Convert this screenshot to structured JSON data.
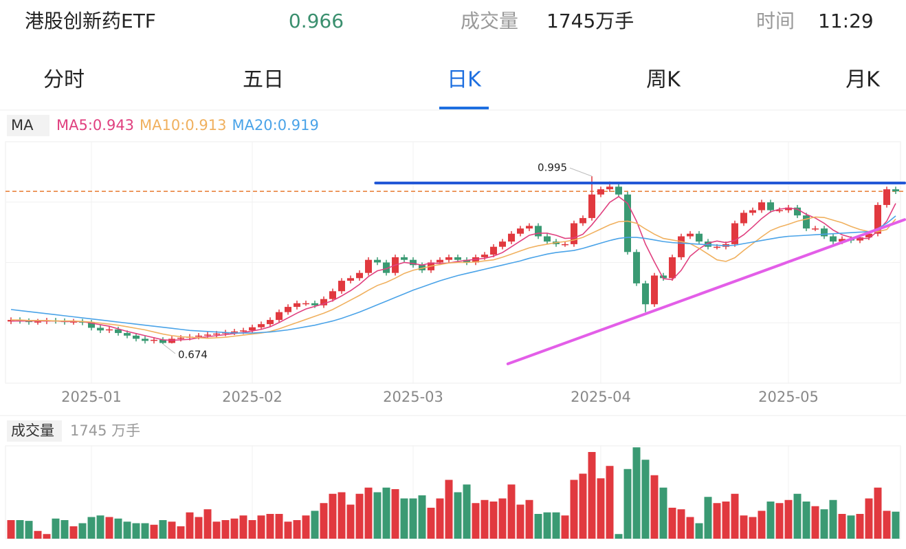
{
  "header": {
    "title": "港股创新药ETF",
    "price": 0.966,
    "volume_label": "成交量",
    "volume": "1745万手",
    "time_label": "时间",
    "time": "11:29"
  },
  "tabs": {
    "items": [
      "分时",
      "五日",
      "日K",
      "周K",
      "月K"
    ],
    "active": 2
  },
  "chart_data": {
    "type": "candlestick",
    "indicator": "MA",
    "categories": [
      null,
      null,
      null,
      null,
      null,
      null,
      null,
      null,
      null,
      "2025-01",
      null,
      null,
      null,
      null,
      null,
      null,
      null,
      null,
      null,
      null,
      null,
      null,
      null,
      null,
      null,
      null,
      null,
      "2025-02",
      null,
      null,
      null,
      null,
      null,
      null,
      null,
      null,
      null,
      null,
      null,
      null,
      null,
      null,
      null,
      null,
      null,
      "2025-03",
      null,
      null,
      null,
      null,
      null,
      null,
      null,
      null,
      null,
      null,
      null,
      null,
      null,
      null,
      null,
      null,
      null,
      null,
      null,
      null,
      "2025-04",
      null,
      null,
      null,
      null,
      null,
      null,
      null,
      null,
      null,
      null,
      null,
      null,
      null,
      null,
      null,
      null,
      null,
      null,
      null,
      null,
      "2025-05",
      null,
      null,
      null,
      null,
      null,
      null,
      null,
      null,
      null,
      null,
      null,
      null
    ],
    "open": [
      0.717,
      0.72,
      0.718,
      0.716,
      0.717,
      0.719,
      0.718,
      0.716,
      0.717,
      0.715,
      0.705,
      0.7,
      0.702,
      0.695,
      0.69,
      0.684,
      0.68,
      0.682,
      0.676,
      0.684,
      0.686,
      0.688,
      0.69,
      0.692,
      0.694,
      0.696,
      0.698,
      0.7,
      0.706,
      0.712,
      0.72,
      0.735,
      0.745,
      0.752,
      0.752,
      0.748,
      0.76,
      0.775,
      0.795,
      0.8,
      0.81,
      0.835,
      0.83,
      0.81,
      0.84,
      0.835,
      0.825,
      0.815,
      0.83,
      0.835,
      0.84,
      0.835,
      0.83,
      0.84,
      0.845,
      0.86,
      0.87,
      0.885,
      0.895,
      0.9,
      0.88,
      0.87,
      0.865,
      0.865,
      0.905,
      0.915,
      0.96,
      0.97,
      0.975,
      0.96,
      0.85,
      0.79,
      0.75,
      0.805,
      0.8,
      0.84,
      0.88,
      0.885,
      0.87,
      0.86,
      0.86,
      0.865,
      0.905,
      0.925,
      0.93,
      0.945,
      0.93,
      0.93,
      0.935,
      0.92,
      0.895,
      0.895,
      0.88,
      0.87,
      0.875,
      0.872,
      0.878,
      0.885,
      0.94,
      0.97
    ],
    "high": [
      0.725,
      0.725,
      0.723,
      0.722,
      0.724,
      0.724,
      0.723,
      0.722,
      0.722,
      0.72,
      0.71,
      0.707,
      0.707,
      0.7,
      0.695,
      0.689,
      0.687,
      0.687,
      0.689,
      0.691,
      0.693,
      0.695,
      0.697,
      0.699,
      0.701,
      0.703,
      0.705,
      0.711,
      0.717,
      0.725,
      0.74,
      0.75,
      0.757,
      0.757,
      0.757,
      0.765,
      0.78,
      0.8,
      0.805,
      0.815,
      0.84,
      0.84,
      0.835,
      0.845,
      0.845,
      0.84,
      0.83,
      0.835,
      0.84,
      0.845,
      0.845,
      0.84,
      0.845,
      0.85,
      0.865,
      0.875,
      0.89,
      0.9,
      0.905,
      0.905,
      0.885,
      0.875,
      0.87,
      0.91,
      0.92,
      0.995,
      0.975,
      0.985,
      0.98,
      0.965,
      0.855,
      0.795,
      0.81,
      0.81,
      0.845,
      0.885,
      0.89,
      0.89,
      0.875,
      0.865,
      0.87,
      0.91,
      0.93,
      0.935,
      0.95,
      0.95,
      0.935,
      0.94,
      0.94,
      0.925,
      0.9,
      0.9,
      0.885,
      0.88,
      0.88,
      0.883,
      0.89,
      0.945,
      0.975,
      0.975
    ],
    "low": [
      0.712,
      0.713,
      0.711,
      0.711,
      0.712,
      0.713,
      0.711,
      0.711,
      0.71,
      0.7,
      0.695,
      0.695,
      0.69,
      0.685,
      0.679,
      0.675,
      0.675,
      0.674,
      0.675,
      0.679,
      0.681,
      0.683,
      0.685,
      0.687,
      0.689,
      0.691,
      0.693,
      0.695,
      0.701,
      0.707,
      0.715,
      0.73,
      0.74,
      0.747,
      0.743,
      0.743,
      0.755,
      0.77,
      0.79,
      0.795,
      0.805,
      0.825,
      0.805,
      0.805,
      0.83,
      0.82,
      0.81,
      0.81,
      0.825,
      0.83,
      0.83,
      0.825,
      0.825,
      0.835,
      0.84,
      0.855,
      0.865,
      0.88,
      0.89,
      0.875,
      0.865,
      0.86,
      0.86,
      0.86,
      0.9,
      0.91,
      0.955,
      0.965,
      0.955,
      0.845,
      0.785,
      0.735,
      0.745,
      0.795,
      0.795,
      0.835,
      0.875,
      0.865,
      0.855,
      0.855,
      0.855,
      0.86,
      0.9,
      0.92,
      0.925,
      0.925,
      0.925,
      0.925,
      0.915,
      0.89,
      0.89,
      0.875,
      0.865,
      0.865,
      0.867,
      0.867,
      0.873,
      0.88,
      0.935,
      0.961
    ],
    "close": [
      0.72,
      0.718,
      0.716,
      0.717,
      0.719,
      0.718,
      0.716,
      0.717,
      0.715,
      0.705,
      0.7,
      0.702,
      0.695,
      0.69,
      0.684,
      0.68,
      0.682,
      0.676,
      0.684,
      0.686,
      0.688,
      0.69,
      0.692,
      0.694,
      0.696,
      0.698,
      0.7,
      0.706,
      0.712,
      0.72,
      0.735,
      0.745,
      0.752,
      0.752,
      0.748,
      0.76,
      0.775,
      0.795,
      0.8,
      0.81,
      0.835,
      0.83,
      0.81,
      0.84,
      0.835,
      0.825,
      0.815,
      0.83,
      0.835,
      0.84,
      0.835,
      0.83,
      0.84,
      0.845,
      0.86,
      0.87,
      0.885,
      0.895,
      0.9,
      0.88,
      0.87,
      0.865,
      0.865,
      0.905,
      0.915,
      0.96,
      0.97,
      0.975,
      0.96,
      0.85,
      0.79,
      0.75,
      0.805,
      0.8,
      0.84,
      0.88,
      0.885,
      0.87,
      0.86,
      0.86,
      0.865,
      0.905,
      0.925,
      0.93,
      0.945,
      0.93,
      0.93,
      0.935,
      0.92,
      0.895,
      0.895,
      0.88,
      0.87,
      0.875,
      0.872,
      0.878,
      0.885,
      0.94,
      0.97,
      0.966
    ],
    "up_color": "#e1393f",
    "down_color": "#3a9a73",
    "ylim": [
      0.599,
      1.061
    ],
    "grid": true,
    "price_line_color": "#e8792e",
    "series": [
      {
        "name": "MA5:0.943",
        "color": "#e0407f",
        "values": [
          0.718,
          0.718,
          0.718,
          0.718,
          0.718,
          0.718,
          0.717,
          0.717,
          0.717,
          0.714,
          0.711,
          0.708,
          0.703,
          0.698,
          0.694,
          0.69,
          0.686,
          0.682,
          0.681,
          0.682,
          0.683,
          0.686,
          0.688,
          0.69,
          0.692,
          0.694,
          0.696,
          0.699,
          0.702,
          0.707,
          0.715,
          0.724,
          0.733,
          0.741,
          0.746,
          0.751,
          0.757,
          0.766,
          0.776,
          0.788,
          0.803,
          0.814,
          0.818,
          0.825,
          0.83,
          0.828,
          0.825,
          0.829,
          0.828,
          0.829,
          0.832,
          0.834,
          0.836,
          0.838,
          0.842,
          0.849,
          0.86,
          0.871,
          0.882,
          0.886,
          0.886,
          0.882,
          0.876,
          0.877,
          0.884,
          0.902,
          0.923,
          0.945,
          0.956,
          0.943,
          0.909,
          0.865,
          0.831,
          0.799,
          0.797,
          0.815,
          0.842,
          0.856,
          0.867,
          0.871,
          0.868,
          0.872,
          0.883,
          0.898,
          0.914,
          0.927,
          0.932,
          0.934,
          0.932,
          0.922,
          0.915,
          0.905,
          0.892,
          0.883,
          0.878,
          0.876,
          0.876,
          0.89,
          0.909,
          0.943
        ]
      },
      {
        "name": "MA10:0.913",
        "color": "#f0b05e",
        "values": [
          0.72,
          0.72,
          0.719,
          0.719,
          0.719,
          0.718,
          0.718,
          0.718,
          0.717,
          0.716,
          0.714,
          0.712,
          0.71,
          0.707,
          0.704,
          0.701,
          0.697,
          0.693,
          0.69,
          0.688,
          0.687,
          0.686,
          0.685,
          0.686,
          0.687,
          0.689,
          0.691,
          0.693,
          0.695,
          0.698,
          0.703,
          0.709,
          0.715,
          0.721,
          0.727,
          0.733,
          0.74,
          0.749,
          0.758,
          0.767,
          0.777,
          0.786,
          0.792,
          0.8,
          0.809,
          0.815,
          0.819,
          0.823,
          0.826,
          0.829,
          0.83,
          0.83,
          0.831,
          0.833,
          0.835,
          0.84,
          0.846,
          0.852,
          0.858,
          0.862,
          0.865,
          0.868,
          0.87,
          0.873,
          0.878,
          0.886,
          0.894,
          0.902,
          0.908,
          0.909,
          0.905,
          0.894,
          0.884,
          0.876,
          0.873,
          0.87,
          0.866,
          0.857,
          0.846,
          0.835,
          0.832,
          0.839,
          0.853,
          0.866,
          0.879,
          0.891,
          0.898,
          0.903,
          0.909,
          0.913,
          0.917,
          0.916,
          0.911,
          0.906,
          0.899,
          0.893,
          0.889,
          0.889,
          0.893,
          0.913
        ]
      },
      {
        "name": "MA20:0.919",
        "color": "#4aa3e8",
        "values": [
          0.74,
          0.738,
          0.736,
          0.734,
          0.732,
          0.73,
          0.728,
          0.726,
          0.724,
          0.722,
          0.72,
          0.718,
          0.716,
          0.714,
          0.712,
          0.71,
          0.708,
          0.706,
          0.704,
          0.702,
          0.7,
          0.699,
          0.698,
          0.697,
          0.696,
          0.695,
          0.695,
          0.695,
          0.696,
          0.697,
          0.699,
          0.701,
          0.704,
          0.707,
          0.71,
          0.714,
          0.718,
          0.723,
          0.729,
          0.735,
          0.742,
          0.749,
          0.756,
          0.763,
          0.77,
          0.777,
          0.783,
          0.789,
          0.795,
          0.8,
          0.805,
          0.809,
          0.813,
          0.817,
          0.821,
          0.825,
          0.829,
          0.833,
          0.838,
          0.842,
          0.846,
          0.849,
          0.851,
          0.853,
          0.857,
          0.862,
          0.867,
          0.872,
          0.876,
          0.878,
          0.878,
          0.876,
          0.873,
          0.87,
          0.868,
          0.867,
          0.866,
          0.865,
          0.864,
          0.863,
          0.862,
          0.863,
          0.866,
          0.869,
          0.872,
          0.875,
          0.878,
          0.88,
          0.881,
          0.882,
          0.883,
          0.884,
          0.885,
          0.886,
          0.887,
          0.888,
          0.889,
          0.895,
          0.905,
          0.919
        ]
      }
    ],
    "trend_lines": [
      {
        "color": "#2358d6",
        "points": [
          [
            40.8,
            0.982
          ],
          [
            100,
            0.982
          ]
        ]
      },
      {
        "color": "#e35ee8",
        "points": [
          [
            55.6,
            0.636
          ],
          [
            100,
            0.912
          ]
        ]
      }
    ],
    "volume_title": "成交量",
    "volume_label": "1745 万手",
    "volume": [
      1200,
      1200,
      1150,
      500,
      300,
      1300,
      1200,
      800,
      1000,
      1400,
      1500,
      1400,
      1300,
      1100,
      1000,
      1000,
      900,
      1200,
      1100,
      800,
      1700,
      1400,
      1900,
      1100,
      1200,
      1300,
      1500,
      1200,
      1500,
      1600,
      1600,
      1100,
      1200,
      1500,
      1800,
      2300,
      2900,
      3000,
      2200,
      2900,
      3300,
      3000,
      3300,
      3200,
      2600,
      2600,
      2800,
      2000,
      2600,
      3800,
      3000,
      3500,
      2300,
      2500,
      2400,
      2600,
      3500,
      2200,
      2500,
      1600,
      1700,
      1700,
      1500,
      3800,
      4200,
      5600,
      3900,
      4700,
      300,
      4500,
      5900,
      5100,
      4100,
      3300,
      2000,
      1900,
      1400,
      1000,
      2700,
      2300,
      2400,
      2900,
      1500,
      1400,
      1800,
      2400,
      2300,
      2500,
      2900,
      2400,
      2100,
      1900,
      2500,
      1600,
      1500,
      1600,
      2600,
      3300,
      1800,
      1745
    ],
    "volume_ylim": [
      0,
      6000
    ]
  }
}
